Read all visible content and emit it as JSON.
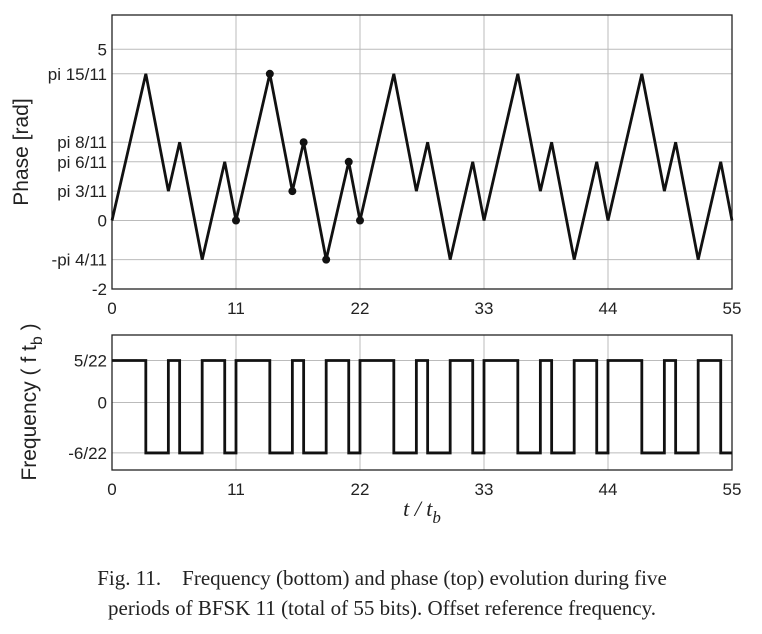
{
  "chart_data": [
    {
      "type": "line",
      "ylabel": "Phase [rad]",
      "xlim": [
        0,
        55
      ],
      "ylim": [
        -2,
        6
      ],
      "grid": true,
      "xticks": [
        0,
        11,
        22,
        33,
        44,
        55
      ],
      "xtick_labels": [
        "0",
        "11",
        "22",
        "33",
        "44",
        "55"
      ],
      "yticks": [
        5,
        4.284,
        2.2848,
        1.7136,
        0.8568,
        0,
        -1.1424,
        -2
      ],
      "ytick_labels": [
        "5",
        "pi 15/11",
        "pi 8/11",
        "pi 6/11",
        "pi 3/11",
        "0",
        "-pi 4/11",
        "-2"
      ],
      "bits": [
        1,
        1,
        1,
        0,
        0,
        1,
        0,
        0,
        1,
        1,
        0
      ],
      "periods": 5,
      "markers_x": [
        11,
        14,
        16,
        17,
        19,
        21,
        22
      ]
    },
    {
      "type": "line",
      "ylabel": "Frequency ( f t",
      "ylabel_sub": "b",
      "ylabel_end": " )",
      "xlabel": "t / t",
      "xlabel_sub": "b",
      "xlim": [
        0,
        55
      ],
      "ylim": [
        -0.365,
        0.365
      ],
      "grid": true,
      "xticks": [
        0,
        11,
        22,
        33,
        44,
        55
      ],
      "xtick_labels": [
        "0",
        "11",
        "22",
        "33",
        "44",
        "55"
      ],
      "yticks": [
        0.22727,
        0,
        -0.27273
      ],
      "ytick_labels": [
        "5/22",
        "0",
        "-6/22"
      ],
      "levels": {
        "high": 0.22727,
        "low": -0.27273
      }
    }
  ],
  "caption": {
    "line1": "Fig. 11.    Frequency (bottom) and phase (top) evolution during five",
    "line2": "periods of BFSK 11 (total of 55 bits). Offset reference frequency."
  }
}
